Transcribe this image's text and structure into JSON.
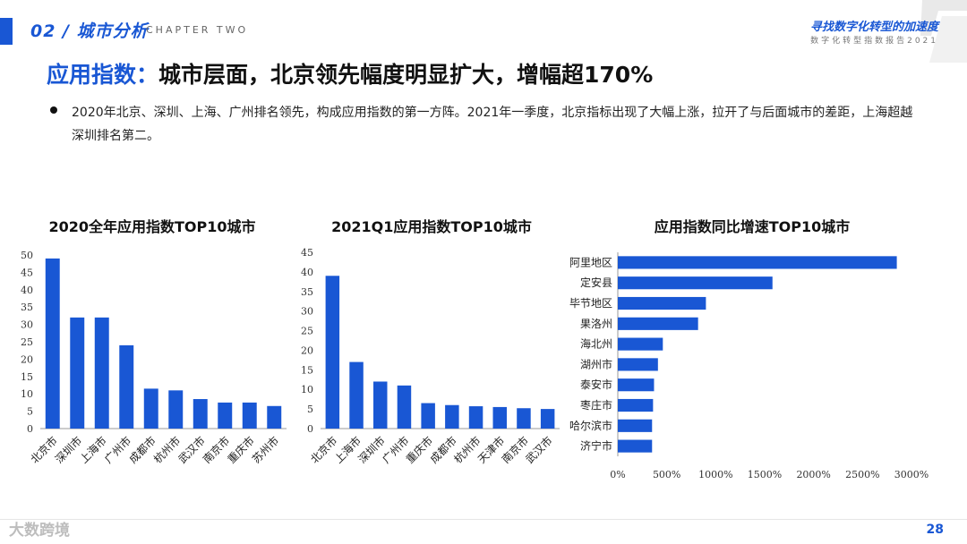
{
  "header": {
    "chapter_title": "02 / 城市分析",
    "chapter_sub": "CHAPTER TWO",
    "report_title": "寻找数字化转型的加速度",
    "report_sub": "数字化转型指数报告2021"
  },
  "headline": {
    "prefix": "应用指数：",
    "text": "城市层面，北京领先幅度明显扩大，增幅超170%"
  },
  "bullet": "2020年北京、深圳、上海、广州排名领先，构成应用指数的第一方阵。2021年一季度，北京指标出现了大幅上涨，拉开了与后面城市的差距，上海超越深圳排名第二。",
  "footer": {
    "logo": "大数跨境",
    "page": "28"
  },
  "colors": {
    "accent": "#1957d4",
    "bar": "#1957d4"
  },
  "chart_data": [
    {
      "type": "bar",
      "title": "2020全年应用指数TOP10城市",
      "categories": [
        "北京市",
        "深圳市",
        "上海市",
        "广州市",
        "成都市",
        "杭州市",
        "武汉市",
        "南京市",
        "重庆市",
        "苏州市"
      ],
      "values": [
        49,
        32,
        32,
        24,
        11.5,
        11,
        8.5,
        7.5,
        7.5,
        6.5
      ],
      "ylim": [
        0,
        50
      ],
      "yticks": [
        0,
        5,
        10,
        15,
        20,
        25,
        30,
        35,
        40,
        45,
        50
      ],
      "xlabel": "",
      "ylabel": ""
    },
    {
      "type": "bar",
      "title": "2021Q1应用指数TOP10城市",
      "categories": [
        "北京市",
        "上海市",
        "深圳市",
        "广州市",
        "重庆市",
        "成都市",
        "杭州市",
        "天津市",
        "南京市",
        "武汉市"
      ],
      "values": [
        39,
        17,
        12,
        11,
        6.5,
        6,
        5.7,
        5.5,
        5.2,
        5
      ],
      "ylim": [
        0,
        45
      ],
      "yticks": [
        0,
        5,
        10,
        15,
        20,
        25,
        30,
        35,
        40,
        45
      ],
      "xlabel": "",
      "ylabel": ""
    },
    {
      "type": "bar",
      "orientation": "horizontal",
      "title": "应用指数同比增速TOP10城市",
      "categories": [
        "阿里地区",
        "定安县",
        "毕节地区",
        "果洛州",
        "海北州",
        "湖州市",
        "泰安市",
        "枣庄市",
        "哈尔滨市",
        "济宁市"
      ],
      "values": [
        2850,
        1580,
        900,
        820,
        460,
        410,
        370,
        360,
        350,
        350
      ],
      "xlim": [
        0,
        3000
      ],
      "xticks": [
        0,
        500,
        1000,
        1500,
        2000,
        2500,
        3000
      ],
      "tick_suffix": "%",
      "xlabel": "",
      "ylabel": ""
    }
  ]
}
